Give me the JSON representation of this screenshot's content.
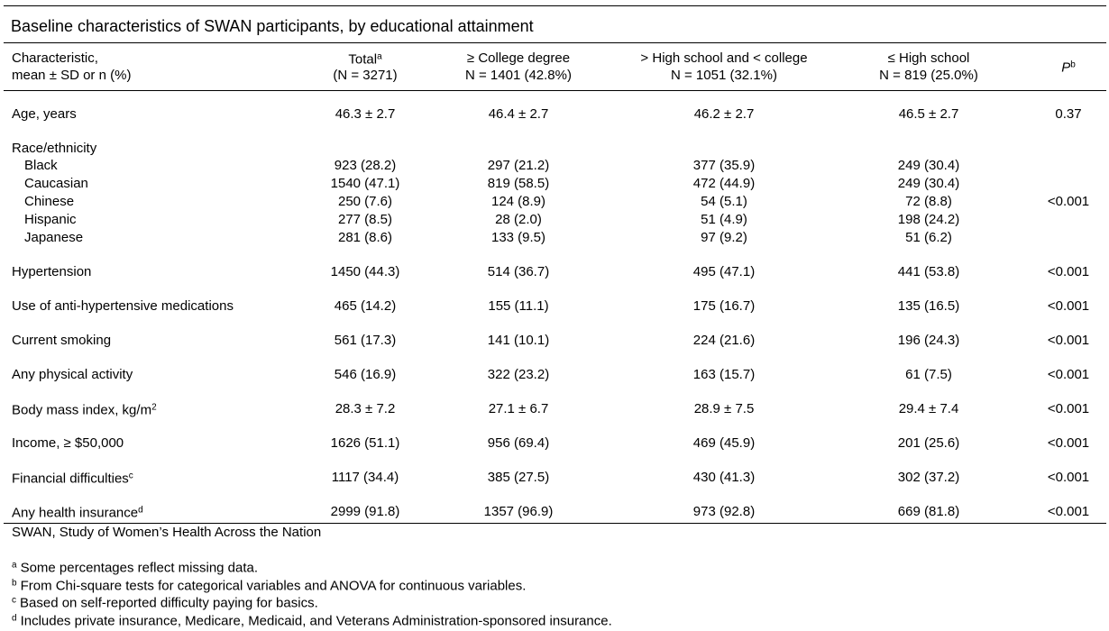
{
  "title": "Baseline characteristics of SWAN participants, by educational attainment",
  "table": {
    "columns": [
      {
        "lines": [
          "Characteristic,",
          "mean ± SD or n (%)"
        ]
      },
      {
        "label": "Total",
        "sup": "a",
        "n": "(N = 3271)"
      },
      {
        "label": "≥ College degree",
        "n": "N = 1401 (42.8%)"
      },
      {
        "label": "> High school and < college",
        "n": "N = 1051 (32.1%)"
      },
      {
        "label": "≤ High school",
        "n": "N = 819 (25.0%)"
      },
      {
        "label": "P",
        "sup": "b"
      }
    ],
    "rows": [
      {
        "label": "Age, years",
        "values": [
          "46.3 ± 2.7",
          "46.4 ± 2.7",
          "46.2 ± 2.7",
          "46.5 ± 2.7"
        ],
        "p": "0.37"
      },
      {
        "label": "Race/ethnicity",
        "p": "<0.001",
        "subrows": [
          {
            "label": "Black",
            "values": [
              "923 (28.2)",
              "297 (21.2)",
              "377 (35.9)",
              "249 (30.4)"
            ]
          },
          {
            "label": "Caucasian",
            "values": [
              "1540 (47.1)",
              "819 (58.5)",
              "472 (44.9)",
              "249 (30.4)"
            ]
          },
          {
            "label": "Chinese",
            "values": [
              "250 (7.6)",
              "124 (8.9)",
              "54 (5.1)",
              "72 (8.8)"
            ]
          },
          {
            "label": "Hispanic",
            "values": [
              "277 (8.5)",
              "28 (2.0)",
              "51 (4.9)",
              "198 (24.2)"
            ]
          },
          {
            "label": "Japanese",
            "values": [
              "281 (8.6)",
              "133 (9.5)",
              "97 (9.2)",
              "51 (6.2)"
            ]
          }
        ]
      },
      {
        "label": "Hypertension",
        "values": [
          "1450 (44.3)",
          "514 (36.7)",
          "495 (47.1)",
          "441 (53.8)"
        ],
        "p": "<0.001"
      },
      {
        "label": "Use of anti-hypertensive medications",
        "values": [
          "465 (14.2)",
          "155 (11.1)",
          "175 (16.7)",
          "135 (16.5)"
        ],
        "p": "<0.001"
      },
      {
        "label": "Current smoking",
        "values": [
          "561 (17.3)",
          "141 (10.1)",
          "224 (21.6)",
          "196 (24.3)"
        ],
        "p": "<0.001"
      },
      {
        "label": "Any physical activity",
        "values": [
          "546 (16.9)",
          "322 (23.2)",
          "163 (15.7)",
          "61 (7.5)"
        ],
        "p": "<0.001"
      },
      {
        "label": "Body mass index, kg/m",
        "sup": "2",
        "values": [
          "28.3 ± 7.2",
          "27.1 ± 6.7",
          "28.9 ± 7.5",
          "29.4 ± 7.4"
        ],
        "p": "<0.001"
      },
      {
        "label": "Income, ≥ $50,000",
        "values": [
          "1626 (51.1)",
          "956 (69.4)",
          "469 (45.9)",
          "201 (25.6)"
        ],
        "p": "<0.001"
      },
      {
        "label": "Financial difficulties",
        "sup": "c",
        "values": [
          "1117 (34.4)",
          "385 (27.5)",
          "430 (41.3)",
          "302 (37.2)"
        ],
        "p": "<0.001"
      },
      {
        "label": "Any health insurance",
        "sup": "d",
        "values": [
          "2999 (91.8)",
          "1357 (96.9)",
          "973 (92.8)",
          "669 (81.8)"
        ],
        "p": "<0.001"
      }
    ]
  },
  "abbreviation": "SWAN, Study of Women’s Health Across the Nation",
  "notes": [
    {
      "mark": "a",
      "text": "Some percentages reflect missing data."
    },
    {
      "mark": "b",
      "text": "From Chi-square tests for categorical variables and ANOVA for continuous variables."
    },
    {
      "mark": "c",
      "text": "Based on self-reported difficulty paying for basics."
    },
    {
      "mark": "d",
      "text": "Includes private insurance, Medicare, Medicaid, and Veterans Administration-sponsored insurance."
    }
  ]
}
